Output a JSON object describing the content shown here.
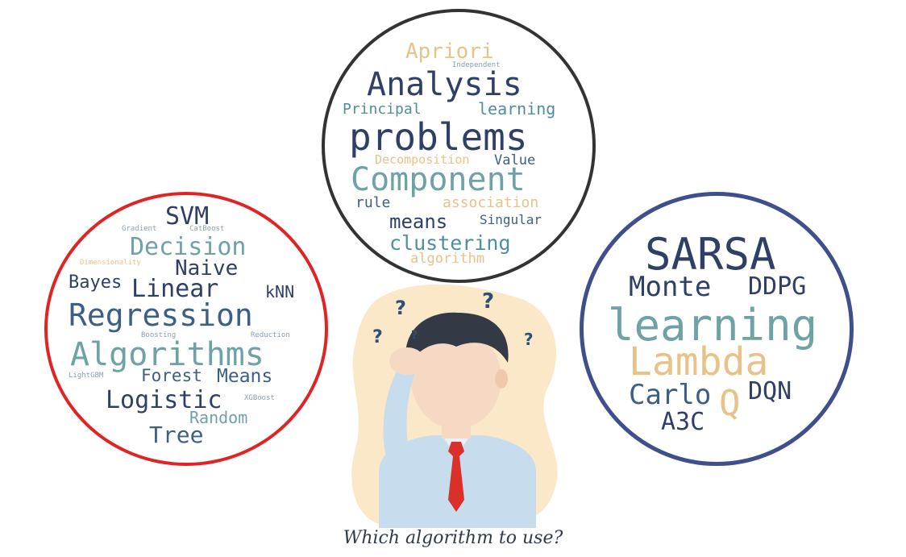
{
  "clouds": {
    "supervised": {
      "border_color": "#e02424",
      "words": [
        "SVM",
        "Gradient",
        "CatBoost",
        "Decision",
        "Dimensionality",
        "Naive",
        "Bayes",
        "Linear",
        "kNN",
        "Regression",
        "Boosting",
        "Reduction",
        "Algorithms",
        "LightGBM",
        "Forest",
        "Means",
        "Logistic",
        "XGBoost",
        "Random",
        "Tree"
      ]
    },
    "unsupervised": {
      "border_color": "#333333",
      "words": [
        "Apriori",
        "Independent",
        "Analysis",
        "Principal",
        "learning",
        "problems",
        "Decomposition",
        "Value",
        "Component",
        "rule",
        "association",
        "means",
        "Singular",
        "clustering",
        "algorithm"
      ]
    },
    "reinforcement": {
      "border_color": "#3f4f8c",
      "words": [
        "SARSA",
        "Monte",
        "DDPG",
        "learning",
        "Lambda",
        "Carlo",
        "DQN",
        "Q",
        "A3C"
      ]
    }
  },
  "figure": {
    "question_marks": [
      "?",
      "?",
      "?",
      "?",
      "?"
    ],
    "icon": "confused-person-icon"
  },
  "caption": "Which algorithm to use?"
}
